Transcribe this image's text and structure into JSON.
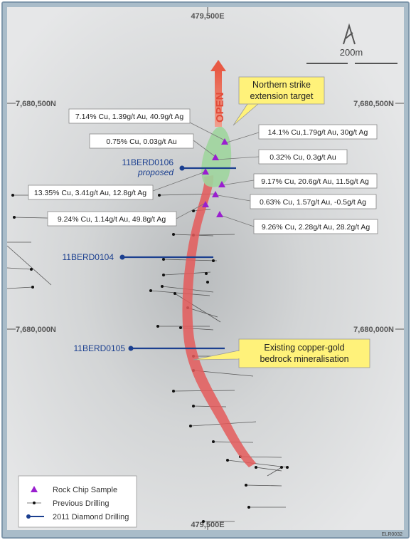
{
  "grid": {
    "east_top": "479,500E",
    "east_bottom": "479,500E",
    "north_upper_left": "7,680,500N",
    "north_upper_right": "7,680,500N",
    "north_lower_left": "7,680,000N",
    "north_lower_right": "7,680,000N"
  },
  "scale_label": "200m",
  "open_label": "OPEN",
  "callouts": {
    "northern": [
      "Northern strike",
      "extension target"
    ],
    "existing": [
      "Existing copper-gold",
      "bedrock mineralisation"
    ]
  },
  "samples": [
    "7.14% Cu, 1.39g/t Au, 40.9g/t Ag",
    "0.75% Cu, 0.03g/t Au",
    "13.35% Cu, 3.41g/t Au, 12.8g/t Ag",
    "9.24% Cu, 1.14g/t Au, 49.8g/t Ag",
    "14.1% Cu,1.79g/t Au, 30g/t Ag",
    "0.32% Cu, 0.3g/t Au",
    "9.17% Cu, 20.6g/t Au, 11.5g/t Ag",
    "0.63% Cu, 1.57g/t Au, -0.5g/t Ag",
    "9.26% Cu, 2.28g/t Au, 28.2g/t Ag"
  ],
  "holes": {
    "h106": "11BERD0106",
    "h106_status": "proposed",
    "h104": "11BERD0104",
    "h105": "11BERD0105"
  },
  "legend": {
    "rock_chip": "Rock Chip Sample",
    "previous": "Previous Drilling",
    "diamond": "2011 Diamond Drilling"
  },
  "figure_ref": "ELR0032",
  "colors": {
    "background": "#d6d8d9",
    "frame": "#8fa5b8",
    "mineral_zone": "#e45a5a",
    "target_zone": "#9fd59d",
    "sample_marker": "#9a1fcf",
    "diamond_drill": "#1b3f8f",
    "callout_fill": "#fff27a",
    "open_arrow": "#ee6f5d"
  }
}
